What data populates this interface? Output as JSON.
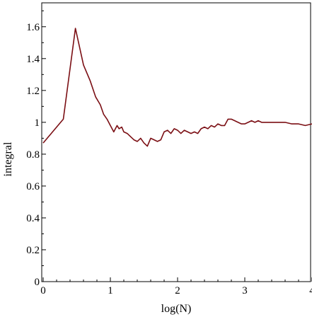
{
  "chart_data": {
    "type": "line",
    "title": "",
    "xlabel": "log(N)",
    "ylabel": "integral",
    "xlim": [
      0,
      4
    ],
    "ylim": [
      0,
      1.75
    ],
    "grid": false,
    "line_color": "#7b0f14",
    "x_ticks": [
      {
        "value": 0,
        "label": "0"
      },
      {
        "value": 1,
        "label": "1"
      },
      {
        "value": 2,
        "label": "2"
      },
      {
        "value": 3,
        "label": "3"
      },
      {
        "value": 4,
        "label": "4"
      }
    ],
    "y_ticks": [
      {
        "value": 0,
        "label": "0"
      },
      {
        "value": 0.2,
        "label": "0.2"
      },
      {
        "value": 0.4,
        "label": "0.4"
      },
      {
        "value": 0.6,
        "label": "0.6"
      },
      {
        "value": 0.8,
        "label": "0.8"
      },
      {
        "value": 1.0,
        "label": "1"
      },
      {
        "value": 1.2,
        "label": "1.2"
      },
      {
        "value": 1.4,
        "label": "1.4"
      },
      {
        "value": 1.6,
        "label": "1.6"
      }
    ],
    "series": [
      {
        "x": [
          0,
          0.3,
          0.48,
          0.6,
          0.7,
          0.78,
          0.85,
          0.9,
          0.95,
          1.0,
          1.05,
          1.1,
          1.13,
          1.17,
          1.2,
          1.25,
          1.3,
          1.35,
          1.4,
          1.45,
          1.5,
          1.55,
          1.6,
          1.65,
          1.7,
          1.75,
          1.8,
          1.85,
          1.9,
          1.95,
          2.0,
          2.05,
          2.1,
          2.15,
          2.2,
          2.25,
          2.3,
          2.35,
          2.4,
          2.45,
          2.5,
          2.55,
          2.6,
          2.65,
          2.7,
          2.75,
          2.8,
          2.85,
          2.9,
          2.95,
          3.0,
          3.05,
          3.1,
          3.15,
          3.2,
          3.25,
          3.3,
          3.4,
          3.5,
          3.6,
          3.7,
          3.8,
          3.9,
          4.0
        ],
        "y": [
          0.87,
          1.02,
          1.59,
          1.36,
          1.26,
          1.16,
          1.11,
          1.05,
          1.02,
          0.98,
          0.94,
          0.98,
          0.96,
          0.97,
          0.94,
          0.93,
          0.91,
          0.89,
          0.88,
          0.9,
          0.87,
          0.85,
          0.9,
          0.89,
          0.88,
          0.89,
          0.94,
          0.95,
          0.93,
          0.96,
          0.95,
          0.93,
          0.95,
          0.94,
          0.93,
          0.94,
          0.93,
          0.96,
          0.97,
          0.96,
          0.98,
          0.97,
          0.99,
          0.98,
          0.98,
          1.02,
          1.02,
          1.01,
          1.0,
          0.99,
          0.99,
          1.0,
          1.01,
          1.0,
          1.01,
          1.0,
          1.0,
          1.0,
          1.0,
          1.0,
          0.99,
          0.99,
          0.98,
          0.99
        ]
      }
    ]
  }
}
